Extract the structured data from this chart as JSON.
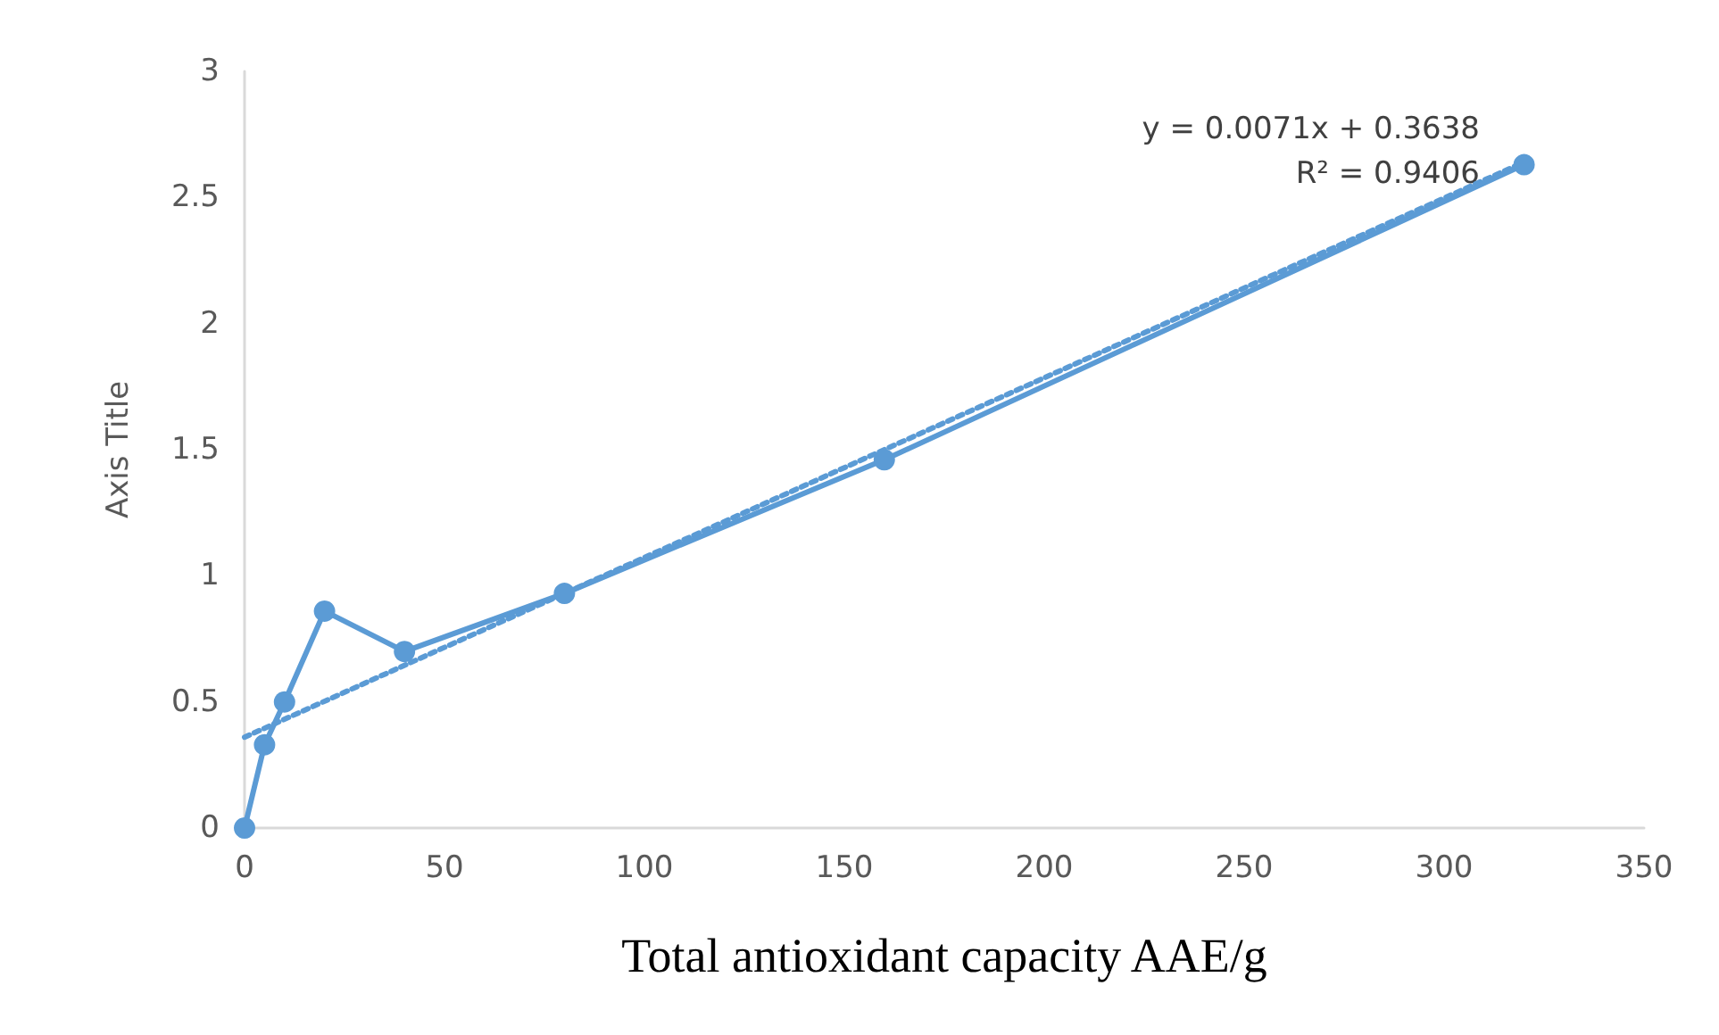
{
  "chart_data": {
    "type": "line",
    "xlabel": "Total antioxidant capacity AAE/g",
    "ylabel": "Axis Title",
    "annotations": [
      "y = 0.0071x + 0.3638",
      "R² = 0.9406"
    ],
    "series": [
      {
        "color": "#5b9bd5",
        "x": [
          0,
          5,
          10,
          20,
          40,
          80,
          160,
          320
        ],
        "values": [
          0,
          0.33,
          0.5,
          0.86,
          0.7,
          0.93,
          1.46,
          2.63
        ],
        "marker": "circle",
        "line_style": "solid"
      },
      {
        "type": "line",
        "color": "#5b9bd5",
        "x": [
          0,
          320
        ],
        "values": [
          0.36,
          2.64
        ],
        "marker": "none",
        "line_style": "dotted"
      }
    ],
    "xlim": [
      0,
      350
    ],
    "xticks": [
      0,
      50,
      100,
      150,
      200,
      250,
      300,
      350
    ],
    "ylim": [
      0,
      3
    ],
    "yticks": [
      0,
      0.5,
      1,
      1.5,
      2,
      2.5,
      3
    ],
    "grid": false
  }
}
